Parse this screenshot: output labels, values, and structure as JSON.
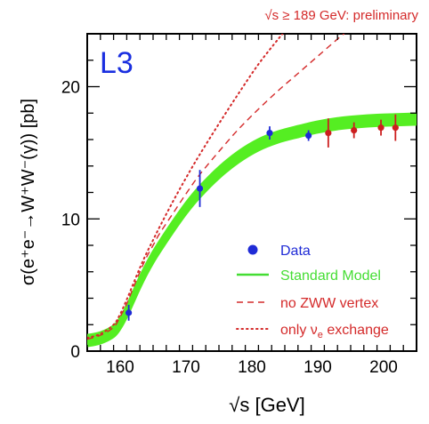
{
  "chart_data": {
    "type": "line",
    "header_note": "√s ≥ 189 GeV: preliminary",
    "experiment_label": "L3",
    "xlabel": "√s  [GeV]",
    "ylabel": "σ(e⁺e⁻→W⁺W⁻(γ))  [pb]",
    "xlim": [
      155,
      205
    ],
    "ylim": [
      0,
      24
    ],
    "x_ticks": [
      160,
      170,
      180,
      190,
      200
    ],
    "y_ticks": [
      0,
      10,
      20
    ],
    "grid": false,
    "legend_position": "bottom-right",
    "series": [
      {
        "name": "Data",
        "kind": "points",
        "points": [
          {
            "x": 161.3,
            "y": 2.9,
            "err": 0.6
          },
          {
            "x": 172.1,
            "y": 12.3,
            "err": 1.4
          },
          {
            "x": 182.7,
            "y": 16.5,
            "err": 0.5
          },
          {
            "x": 188.6,
            "y": 16.3,
            "err": 0.4
          }
        ]
      },
      {
        "name": "",
        "kind": "points",
        "points": [
          {
            "x": 191.6,
            "y": 16.5,
            "err": 1.1
          },
          {
            "x": 195.5,
            "y": 16.7,
            "err": 0.6
          },
          {
            "x": 199.6,
            "y": 16.9,
            "err": 0.6
          },
          {
            "x": 201.8,
            "y": 16.9,
            "err": 1.0
          }
        ]
      },
      {
        "name": "Standard Model",
        "kind": "band",
        "x": [
          155,
          157,
          159,
          160,
          161,
          162,
          163,
          164,
          165,
          166,
          168,
          170,
          172,
          175,
          178,
          181,
          184,
          187,
          190,
          193,
          196,
          199,
          202,
          205
        ],
        "y": [
          0.8,
          1.0,
          1.5,
          2.1,
          3.0,
          4.1,
          5.2,
          6.2,
          7.1,
          7.9,
          9.4,
          10.8,
          12.0,
          13.5,
          14.7,
          15.6,
          16.2,
          16.6,
          16.95,
          17.2,
          17.35,
          17.45,
          17.5,
          17.55
        ],
        "halfwidth": 0.4
      },
      {
        "name": "no ZWW vertex",
        "kind": "line",
        "x": [
          155,
          157,
          159,
          160,
          161,
          162,
          163,
          164,
          165,
          166,
          168,
          170,
          172,
          175,
          178,
          181,
          184,
          187,
          190,
          193,
          195
        ],
        "y": [
          0.9,
          1.2,
          1.8,
          2.6,
          3.6,
          4.8,
          6.0,
          7.1,
          8.0,
          8.9,
          10.4,
          11.9,
          13.3,
          15.1,
          16.8,
          18.3,
          19.7,
          21.0,
          22.3,
          23.6,
          24.4
        ]
      },
      {
        "name": "only ν_e exchange",
        "kind": "line",
        "x": [
          155,
          157,
          159,
          160,
          161,
          162,
          163,
          164,
          165,
          166,
          168,
          170,
          172,
          175,
          178,
          181,
          184,
          186
        ],
        "y": [
          1.0,
          1.3,
          2.0,
          2.8,
          3.9,
          5.1,
          6.3,
          7.4,
          8.4,
          9.4,
          11.3,
          13.1,
          14.8,
          17.2,
          19.5,
          21.7,
          23.6,
          24.8
        ]
      }
    ],
    "legend": [
      {
        "label": "Data",
        "symbol": "point"
      },
      {
        "label": "Standard Model",
        "symbol": "solid"
      },
      {
        "label": "no ZWW vertex",
        "symbol": "dashed"
      },
      {
        "label": "only ν",
        "sub": "e",
        "tail": " exchange",
        "symbol": "dotted"
      }
    ]
  },
  "colors": {
    "data": "#1f2bd6",
    "data_high": "#cc1f1f",
    "sm_band": "#55ee22",
    "sm_line": "#44dd33",
    "alt": "#d42a2a",
    "l3": "#1a2fe0",
    "axis": "#000000",
    "note": "#d42a2a"
  }
}
